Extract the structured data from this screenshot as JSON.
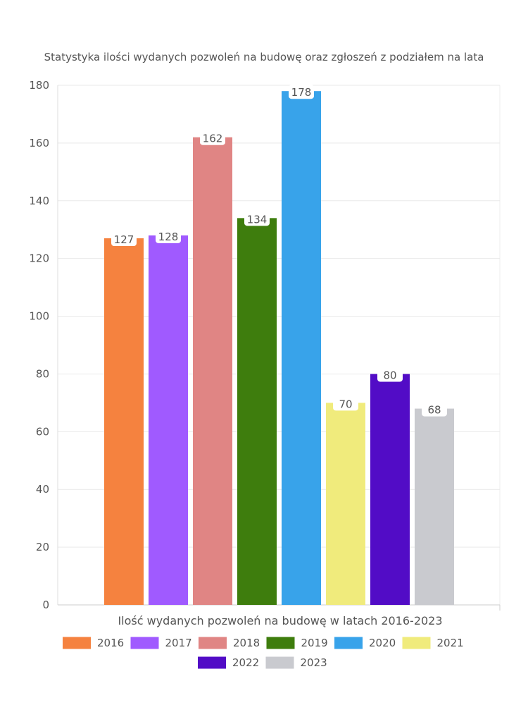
{
  "chart_data": {
    "type": "bar",
    "title": "Statystyka ilości wydanych pozwoleń na budowę oraz zgłoszeń z podziałem na lata",
    "xlabel": "Ilość wydanych pozwoleń na budowę w latach 2016-2023",
    "ylabel": "",
    "ylim": [
      0,
      180
    ],
    "yticks": [
      0,
      20,
      40,
      60,
      80,
      100,
      120,
      140,
      160,
      180
    ],
    "grid": true,
    "legend_position": "bottom",
    "series": [
      {
        "name": "2016",
        "value": 127,
        "color": "#f5823f"
      },
      {
        "name": "2017",
        "value": 128,
        "color": "#a05aff"
      },
      {
        "name": "2018",
        "value": 162,
        "color": "#e08584"
      },
      {
        "name": "2019",
        "value": 134,
        "color": "#3e7d0d"
      },
      {
        "name": "2020",
        "value": 178,
        "color": "#38a3ea"
      },
      {
        "name": "2021",
        "value": 70,
        "color": "#f0eb7c"
      },
      {
        "name": "2022",
        "value": 80,
        "color": "#520cc6"
      },
      {
        "name": "2023",
        "value": 68,
        "color": "#c9cacf"
      }
    ]
  }
}
